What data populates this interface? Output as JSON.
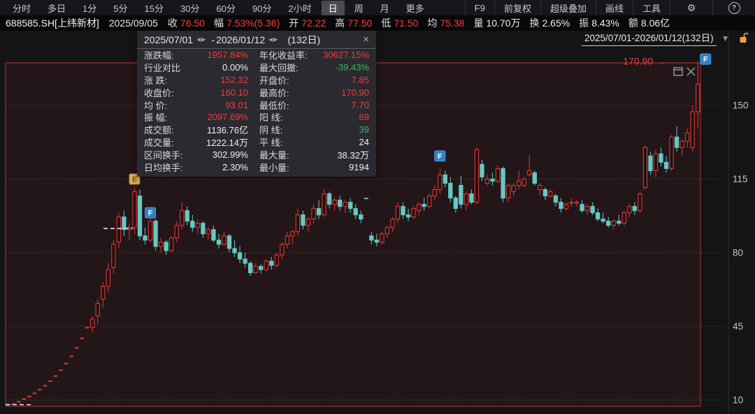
{
  "toolbar": {
    "periods": [
      "分时",
      "多日",
      "1分",
      "5分",
      "15分",
      "30分",
      "60分",
      "90分",
      "2小时",
      "日",
      "周",
      "月",
      "更多"
    ],
    "active_period": "日",
    "tools": [
      "F9",
      "前复权",
      "超级叠加",
      "画线",
      "工具"
    ],
    "gear_glyph": "⚙",
    "help_glyph": "?"
  },
  "quote_bar": {
    "symbol": "688585.SH[上纬新材]",
    "date": "2025/09/05",
    "fields": [
      {
        "label": "收",
        "value": "76.50",
        "color": "red"
      },
      {
        "label": "幅",
        "value": "7.53%(5.36)",
        "color": "red"
      },
      {
        "label": "开",
        "value": "72.22",
        "color": "red"
      },
      {
        "label": "高",
        "value": "77.50",
        "color": "red"
      },
      {
        "label": "低",
        "value": "71.50",
        "color": "red"
      },
      {
        "label": "均",
        "value": "75.38",
        "color": "red"
      },
      {
        "label": "量",
        "value": "10.70万",
        "color": "white"
      },
      {
        "label": "换",
        "value": "2.65%",
        "color": "white"
      },
      {
        "label": "振",
        "value": "8.43%",
        "color": "white"
      },
      {
        "label": "额",
        "value": "8.06亿",
        "color": "white"
      }
    ]
  },
  "stats_panel": {
    "start_date": "2025/07/01",
    "end_date": "2026/01/12",
    "days_label": "(132日)",
    "prev_glyph": "◀",
    "next_glyph": "▶",
    "dash": "-",
    "close_glyph": "×",
    "rows": [
      {
        "l1": "涨跌幅:",
        "v1": "1957.84%",
        "c1": "red",
        "l2": "年化收益率:",
        "v2": "30627.15%",
        "c2": "red"
      },
      {
        "l1": "行业对比",
        "v1": "0.00%",
        "c1": "white",
        "l2": "最大回撤:",
        "v2": "-39.43%",
        "c2": "green"
      },
      {
        "l1": "涨 跌:",
        "v1": "152.32",
        "c1": "red",
        "l2": "开盘价:",
        "v2": "7.85",
        "c2": "red"
      },
      {
        "l1": "收盘价:",
        "v1": "160.10",
        "c1": "red",
        "l2": "最高价:",
        "v2": "170.90",
        "c2": "red"
      },
      {
        "l1": "均 价:",
        "v1": "93.01",
        "c1": "red",
        "l2": "最低价:",
        "v2": "7.70",
        "c2": "red"
      },
      {
        "l1": "振 幅:",
        "v1": "2097.69%",
        "c1": "red",
        "l2": "阳 线:",
        "v2": "69",
        "c2": "red"
      },
      {
        "l1": "成交额:",
        "v1": "1136.76亿",
        "c1": "white",
        "l2": "阴 线:",
        "v2": "39",
        "c2": "green"
      },
      {
        "l1": "成交量:",
        "v1": "1222.14万",
        "c1": "white",
        "l2": "平 线:",
        "v2": "24",
        "c2": "white"
      },
      {
        "l1": "区间换手:",
        "v1": "302.99%",
        "c1": "white",
        "l2": "最大量:",
        "v2": "38.32万",
        "c2": "white"
      },
      {
        "l1": "日均换手:",
        "v1": "2.30%",
        "c1": "white",
        "l2": "最小量:",
        "v2": "9194",
        "c2": "white"
      }
    ]
  },
  "chart": {
    "range_label": "2025/07/01-2026/01/12(132日)",
    "caret_glyph": "▼"
  },
  "colors": {
    "up": "#e23634",
    "down": "#67c8c3",
    "red_text": "#f23c3c",
    "green_text": "#3db75c",
    "selection_border": "#b63434",
    "selection_fill": "rgba(176,48,48,0.10)",
    "grid": "#6e5454",
    "axis_text": "#c6c6ca",
    "badge_gold_bg": "#d9b05f",
    "badge_gold_text": "#8a4a00",
    "badge_blue_bg": "#2f7fc4",
    "badge_blue_text": "#ffffff",
    "dashed_marker": "#e8e8e8",
    "lock_orange": "#e8a33d",
    "icon_gray": "#9a9aa0"
  },
  "chart_data": {
    "type": "candlestick",
    "symbol": "688585.SH",
    "period": "日",
    "visible_range": {
      "start": "2025/07/01",
      "end": "2026/01/12",
      "days": 132
    },
    "y_ticks": [
      150,
      115,
      80,
      45,
      10
    ],
    "high_annotation": {
      "label": "170.90",
      "price": 170.9,
      "arrow_glyph": "→"
    },
    "markers": [
      {
        "letter": "E",
        "day": 24,
        "price": 115,
        "style": "gold"
      },
      {
        "letter": "F",
        "day": 27,
        "price": 99,
        "style": "blue"
      },
      {
        "letter": "F",
        "day": 82,
        "price": 126,
        "style": "blue"
      },
      {
        "letter": "F",
        "day": 131,
        "price": 172,
        "style": "blue",
        "dx": 11
      }
    ],
    "dashed_levels": [
      {
        "day1": 0,
        "day2": 5.2,
        "price": 7.8
      },
      {
        "day1": 18.6,
        "day2": 24.2,
        "price": 91.5
      }
    ],
    "candles": [
      [
        7.85,
        7.9,
        7.7,
        7.8
      ],
      [
        8.1,
        8.1,
        8.1,
        8.1
      ],
      [
        9.2,
        9.2,
        9.2,
        9.2
      ],
      [
        10.4,
        10.4,
        10.4,
        10.4
      ],
      [
        11.7,
        11.7,
        11.7,
        11.7
      ],
      [
        13.2,
        13.2,
        13.2,
        13.2
      ],
      [
        14.9,
        14.9,
        14.9,
        14.9
      ],
      [
        16.8,
        16.8,
        16.8,
        16.8
      ],
      [
        19.0,
        19.0,
        19.0,
        19.0
      ],
      [
        21.4,
        21.4,
        21.4,
        21.4
      ],
      [
        24.2,
        24.2,
        24.2,
        24.2
      ],
      [
        27.3,
        27.3,
        27.3,
        27.3
      ],
      [
        30.8,
        30.8,
        30.8,
        30.8
      ],
      [
        34.8,
        34.8,
        34.8,
        34.8
      ],
      [
        39.3,
        39.3,
        39.3,
        39.3
      ],
      [
        44.4,
        44.4,
        44.4,
        44.4
      ],
      [
        44.5,
        50.0,
        42.0,
        48.5
      ],
      [
        50.0,
        58.0,
        46.0,
        56.0
      ],
      [
        58.0,
        66.0,
        54.0,
        64.0
      ],
      [
        64.0,
        75.0,
        61.0,
        72.0
      ],
      [
        73.0,
        86.0,
        70.0,
        84.0
      ],
      [
        85.0,
        99.0,
        82.0,
        97.0
      ],
      [
        97.0,
        100.0,
        88.0,
        91.0
      ],
      [
        91.0,
        94.0,
        86.0,
        92.0
      ],
      [
        92.0,
        111.0,
        89.0,
        109.0
      ],
      [
        107.0,
        110.0,
        86.0,
        88.0
      ],
      [
        88.0,
        92.0,
        84.0,
        86.0
      ],
      [
        86.0,
        97.0,
        85.0,
        95.0
      ],
      [
        95.0,
        96.0,
        81.0,
        83.0
      ],
      [
        83.0,
        87.0,
        80.0,
        85.0
      ],
      [
        85.0,
        86.0,
        79.0,
        81.0
      ],
      [
        81.0,
        88.0,
        80.0,
        87.0
      ],
      [
        87.0,
        95.0,
        85.0,
        93.0
      ],
      [
        93.0,
        104.0,
        91.0,
        100.0
      ],
      [
        100.0,
        102.0,
        93.0,
        95.0
      ],
      [
        95.0,
        98.0,
        90.0,
        92.0
      ],
      [
        92.0,
        96.0,
        89.0,
        94.0
      ],
      [
        94.0,
        95.0,
        87.0,
        89.0
      ],
      [
        89.0,
        92.0,
        86.0,
        91.0
      ],
      [
        91.0,
        93.0,
        85.0,
        86.0
      ],
      [
        86.0,
        89.0,
        82.0,
        84.0
      ],
      [
        84.0,
        90.0,
        83.0,
        88.0
      ],
      [
        88.0,
        89.0,
        80.0,
        82.0
      ],
      [
        82.0,
        86.0,
        78.0,
        80.0
      ],
      [
        80.0,
        83.0,
        75.0,
        77.0
      ],
      [
        77.0,
        80.0,
        73.0,
        75.0
      ],
      [
        75.0,
        76.0,
        69.0,
        70.5
      ],
      [
        70.5,
        75.0,
        70.0,
        73.5
      ],
      [
        73.5,
        74.5,
        70.0,
        72.0
      ],
      [
        72.0,
        77.0,
        71.0,
        76.0
      ],
      [
        76.0,
        78.0,
        72.0,
        74.0
      ],
      [
        74.0,
        80.0,
        73.0,
        79.0
      ],
      [
        79.0,
        85.0,
        77.0,
        84.0
      ],
      [
        84.0,
        90.0,
        82.0,
        88.0
      ],
      [
        88.0,
        91.0,
        84.0,
        90.0
      ],
      [
        90.0,
        101.0,
        88.0,
        98.0
      ],
      [
        98.0,
        100.0,
        91.0,
        93.0
      ],
      [
        93.0,
        97.0,
        90.0,
        96.0
      ],
      [
        96.0,
        103.0,
        94.0,
        101.0
      ],
      [
        101.0,
        105.0,
        96.0,
        98.0
      ],
      [
        98.0,
        110.0,
        97.0,
        108.0
      ],
      [
        108.0,
        109.0,
        101.0,
        103.0
      ],
      [
        103.0,
        106.0,
        100.0,
        105.0
      ],
      [
        105.0,
        107.0,
        100.0,
        102.0
      ],
      [
        102.0,
        105.0,
        99.0,
        104.0
      ],
      [
        104.0,
        106.0,
        99.0,
        101.0
      ],
      [
        101.0,
        103.0,
        96.0,
        98.0
      ],
      [
        98.0,
        100.0,
        94.0,
        96.0
      ],
      [
        106.0,
        106.0,
        105.5,
        105.8
      ],
      [
        88.0,
        90.0,
        84.0,
        86.0
      ],
      [
        86.0,
        89.0,
        83.0,
        85.0
      ],
      [
        85.0,
        90.0,
        84.0,
        89.0
      ],
      [
        89.0,
        93.0,
        87.0,
        92.0
      ],
      [
        92.0,
        97.0,
        90.0,
        96.0
      ],
      [
        96.0,
        104.0,
        94.0,
        102.0
      ],
      [
        102.0,
        104.0,
        96.0,
        98.0
      ],
      [
        98.0,
        101.0,
        95.0,
        97.0
      ],
      [
        97.0,
        102.0,
        96.0,
        101.0
      ],
      [
        100.0,
        104.0,
        98.0,
        103.0
      ],
      [
        103.0,
        106.0,
        100.0,
        102.0
      ],
      [
        102.0,
        108.0,
        101.0,
        107.0
      ],
      [
        107.0,
        112.0,
        105.0,
        110.0
      ],
      [
        110.0,
        120.0,
        108.0,
        117.0
      ],
      [
        117.0,
        119.0,
        111.0,
        113.0
      ],
      [
        113.0,
        116.0,
        104.0,
        106.0
      ],
      [
        106.0,
        107.0,
        99.0,
        101.0
      ],
      [
        112.0,
        116.5,
        101.0,
        103.0
      ],
      [
        103.0,
        109.0,
        100.0,
        108.0
      ],
      [
        108.0,
        110.0,
        103.0,
        104.0
      ],
      [
        104.0,
        130.0,
        103.0,
        129.0
      ],
      [
        122.0,
        124.0,
        114.0,
        116.0
      ],
      [
        113.0,
        117.0,
        112.0,
        115.0
      ],
      [
        115.0,
        118.0,
        112.0,
        114.0
      ],
      [
        114.0,
        121.5,
        113.0,
        120.0
      ],
      [
        120.0,
        121.0,
        104.0,
        106.0
      ],
      [
        106.0,
        113.0,
        104.0,
        112.0
      ],
      [
        109.0,
        113.0,
        107.0,
        112.0
      ],
      [
        112.0,
        119.0,
        110.0,
        114.0
      ],
      [
        112.0,
        116.0,
        111.0,
        115.0
      ],
      [
        117.0,
        126.5,
        116.0,
        119.0
      ],
      [
        118.0,
        119.0,
        112.0,
        113.0
      ],
      [
        110.0,
        113.0,
        107.0,
        112.0
      ],
      [
        110.0,
        111.0,
        105.0,
        107.0
      ],
      [
        107.0,
        110.0,
        106.0,
        109.0
      ],
      [
        107.0,
        108.0,
        102.0,
        104.0
      ],
      [
        104.0,
        106.0,
        99.0,
        101.0
      ],
      [
        101.0,
        104.0,
        100.0,
        103.0
      ],
      [
        104.0,
        106.0,
        102.0,
        104.0
      ],
      [
        104.0,
        105.0,
        102.0,
        104.0
      ],
      [
        103.0,
        105.0,
        99.0,
        100.0
      ],
      [
        100.0,
        103.0,
        98.0,
        102.0
      ],
      [
        102.0,
        104.0,
        98.0,
        99.0
      ],
      [
        99.0,
        101.0,
        95.0,
        96.0
      ],
      [
        96.0,
        99.0,
        94.0,
        95.0
      ],
      [
        95.0,
        97.0,
        92.0,
        93.0
      ],
      [
        93.0,
        96.0,
        91.0,
        95.0
      ],
      [
        95.0,
        98.0,
        93.0,
        94.0
      ],
      [
        94.0,
        100.0,
        93.0,
        99.0
      ],
      [
        99.0,
        103.0,
        97.0,
        102.0
      ],
      [
        102.0,
        104.0,
        98.0,
        100.0
      ],
      [
        100.0,
        109.0,
        99.0,
        108.0
      ],
      [
        111.0,
        131.0,
        110.0,
        130.0
      ],
      [
        126.0,
        128.0,
        117.0,
        119.0
      ],
      [
        119.0,
        129.0,
        116.0,
        127.0
      ],
      [
        127.0,
        130.0,
        121.0,
        123.0
      ],
      [
        123.0,
        126.0,
        118.0,
        120.0
      ],
      [
        120.0,
        136.0,
        119.0,
        135.0
      ],
      [
        135.0,
        140.0,
        128.0,
        130.0
      ],
      [
        130.0,
        134.0,
        126.0,
        133.0
      ],
      [
        133.0,
        139.0,
        130.0,
        137.0
      ],
      [
        130.0,
        150.0,
        128.0,
        147.0
      ],
      [
        147.0,
        170.9,
        139.0,
        160.1
      ]
    ]
  }
}
